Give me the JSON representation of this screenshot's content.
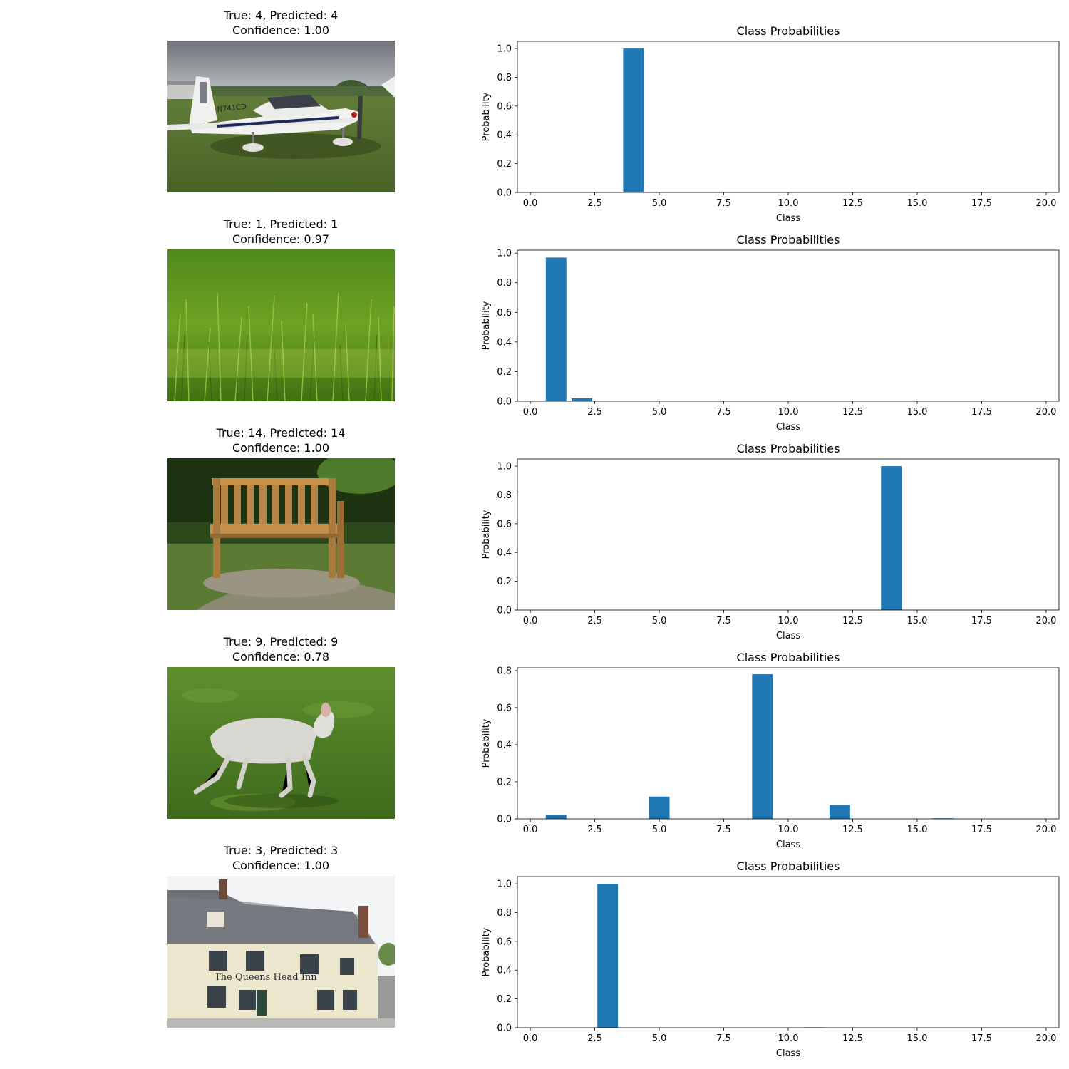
{
  "panels": [
    {
      "true_label": 4,
      "predicted_label": 4,
      "confidence": "1.00",
      "title_line1": "True: 4, Predicted: 4",
      "title_line2": "Confidence: 1.00",
      "photo_subject": "airplane",
      "photo_text": "N741CD"
    },
    {
      "true_label": 1,
      "predicted_label": 1,
      "confidence": "0.97",
      "title_line1": "True: 1, Predicted: 1",
      "title_line2": "Confidence: 0.97",
      "photo_subject": "grass"
    },
    {
      "true_label": 14,
      "predicted_label": 14,
      "confidence": "1.00",
      "title_line1": "True: 14, Predicted: 14",
      "title_line2": "Confidence: 1.00",
      "photo_subject": "bench"
    },
    {
      "true_label": 9,
      "predicted_label": 9,
      "confidence": "0.78",
      "title_line1": "True: 9, Predicted: 9",
      "title_line2": "Confidence: 0.78",
      "photo_subject": "lamb"
    },
    {
      "true_label": 3,
      "predicted_label": 3,
      "confidence": "1.00",
      "title_line1": "True: 3, Predicted: 3",
      "title_line2": "Confidence: 1.00",
      "photo_subject": "building",
      "photo_text": "The Queens Head Inn"
    }
  ],
  "colors": {
    "bar": "#1f77b4",
    "axis": "#000000"
  },
  "chart_data": [
    {
      "type": "bar",
      "title": "Class Probabilities",
      "xlabel": "Class",
      "ylabel": "Probability",
      "categories": [
        0,
        1,
        2,
        3,
        4,
        5,
        6,
        7,
        8,
        9,
        10,
        11,
        12,
        13,
        14,
        15,
        16,
        17,
        18,
        19,
        20
      ],
      "values": [
        0,
        0,
        0,
        0,
        1.0,
        0,
        0,
        0,
        0,
        0,
        0,
        0,
        0,
        0,
        0,
        0,
        0,
        0,
        0,
        0,
        0
      ],
      "xlim": [
        -0.5,
        20.5
      ],
      "ylim": [
        0,
        1.05
      ],
      "xticks": [
        0.0,
        2.5,
        5.0,
        7.5,
        10.0,
        12.5,
        15.0,
        17.5,
        20.0
      ],
      "xtick_labels": [
        "0.0",
        "2.5",
        "5.0",
        "7.5",
        "10.0",
        "12.5",
        "15.0",
        "17.5",
        "20.0"
      ],
      "yticks": [
        0.0,
        0.2,
        0.4,
        0.6,
        0.8,
        1.0
      ],
      "ytick_labels": [
        "0.0",
        "0.2",
        "0.4",
        "0.6",
        "0.8",
        "1.0"
      ],
      "grid": false,
      "legend": "none"
    },
    {
      "type": "bar",
      "title": "Class Probabilities",
      "xlabel": "Class",
      "ylabel": "Probability",
      "categories": [
        0,
        1,
        2,
        3,
        4,
        5,
        6,
        7,
        8,
        9,
        10,
        11,
        12,
        13,
        14,
        15,
        16,
        17,
        18,
        19,
        20
      ],
      "values": [
        0,
        0.97,
        0.02,
        0,
        0,
        0,
        0,
        0,
        0,
        0,
        0,
        0,
        0,
        0,
        0,
        0,
        0,
        0,
        0,
        0,
        0
      ],
      "xlim": [
        -0.5,
        20.5
      ],
      "ylim": [
        0,
        1.02
      ],
      "xticks": [
        0.0,
        2.5,
        5.0,
        7.5,
        10.0,
        12.5,
        15.0,
        17.5,
        20.0
      ],
      "xtick_labels": [
        "0.0",
        "2.5",
        "5.0",
        "7.5",
        "10.0",
        "12.5",
        "15.0",
        "17.5",
        "20.0"
      ],
      "yticks": [
        0.0,
        0.2,
        0.4,
        0.6,
        0.8,
        1.0
      ],
      "ytick_labels": [
        "0.0",
        "0.2",
        "0.4",
        "0.6",
        "0.8",
        "1.0"
      ],
      "grid": false,
      "legend": "none"
    },
    {
      "type": "bar",
      "title": "Class Probabilities",
      "xlabel": "Class",
      "ylabel": "Probability",
      "categories": [
        0,
        1,
        2,
        3,
        4,
        5,
        6,
        7,
        8,
        9,
        10,
        11,
        12,
        13,
        14,
        15,
        16,
        17,
        18,
        19,
        20
      ],
      "values": [
        0,
        0,
        0,
        0,
        0,
        0,
        0,
        0,
        0,
        0,
        0,
        0,
        0,
        0,
        1.0,
        0,
        0,
        0,
        0,
        0,
        0
      ],
      "xlim": [
        -0.5,
        20.5
      ],
      "ylim": [
        0,
        1.05
      ],
      "xticks": [
        0.0,
        2.5,
        5.0,
        7.5,
        10.0,
        12.5,
        15.0,
        17.5,
        20.0
      ],
      "xtick_labels": [
        "0.0",
        "2.5",
        "5.0",
        "7.5",
        "10.0",
        "12.5",
        "15.0",
        "17.5",
        "20.0"
      ],
      "yticks": [
        0.0,
        0.2,
        0.4,
        0.6,
        0.8,
        1.0
      ],
      "ytick_labels": [
        "0.0",
        "0.2",
        "0.4",
        "0.6",
        "0.8",
        "1.0"
      ],
      "grid": false,
      "legend": "none"
    },
    {
      "type": "bar",
      "title": "Class Probabilities",
      "xlabel": "Class",
      "ylabel": "Probability",
      "categories": [
        0,
        1,
        2,
        3,
        4,
        5,
        6,
        7,
        8,
        9,
        10,
        11,
        12,
        13,
        14,
        15,
        16,
        17,
        18,
        19,
        20
      ],
      "values": [
        0,
        0.02,
        0,
        0,
        0,
        0.12,
        0,
        0,
        0,
        0.78,
        0,
        0,
        0.075,
        0,
        0,
        0,
        0.003,
        0,
        0,
        0,
        0
      ],
      "xlim": [
        -0.5,
        20.5
      ],
      "ylim": [
        0,
        0.815
      ],
      "xticks": [
        0.0,
        2.5,
        5.0,
        7.5,
        10.0,
        12.5,
        15.0,
        17.5,
        20.0
      ],
      "xtick_labels": [
        "0.0",
        "2.5",
        "5.0",
        "7.5",
        "10.0",
        "12.5",
        "15.0",
        "17.5",
        "20.0"
      ],
      "yticks": [
        0.0,
        0.2,
        0.4,
        0.6,
        0.8
      ],
      "ytick_labels": [
        "0.0",
        "0.2",
        "0.4",
        "0.6",
        "0.8"
      ],
      "grid": false,
      "legend": "none"
    },
    {
      "type": "bar",
      "title": "Class Probabilities",
      "xlabel": "Class",
      "ylabel": "Probability",
      "categories": [
        0,
        1,
        2,
        3,
        4,
        5,
        6,
        7,
        8,
        9,
        10,
        11,
        12,
        13,
        14,
        15,
        16,
        17,
        18,
        19,
        20
      ],
      "values": [
        0,
        0,
        0,
        1.0,
        0,
        0,
        0,
        0,
        0,
        0,
        0,
        0.003,
        0,
        0,
        0,
        0,
        0,
        0,
        0,
        0,
        0
      ],
      "xlim": [
        -0.5,
        20.5
      ],
      "ylim": [
        0,
        1.05
      ],
      "xticks": [
        0.0,
        2.5,
        5.0,
        7.5,
        10.0,
        12.5,
        15.0,
        17.5,
        20.0
      ],
      "xtick_labels": [
        "0.0",
        "2.5",
        "5.0",
        "7.5",
        "10.0",
        "12.5",
        "15.0",
        "17.5",
        "20.0"
      ],
      "yticks": [
        0.0,
        0.2,
        0.4,
        0.6,
        0.8,
        1.0
      ],
      "ytick_labels": [
        "0.0",
        "0.2",
        "0.4",
        "0.6",
        "0.8",
        "1.0"
      ],
      "grid": false,
      "legend": "none"
    }
  ]
}
